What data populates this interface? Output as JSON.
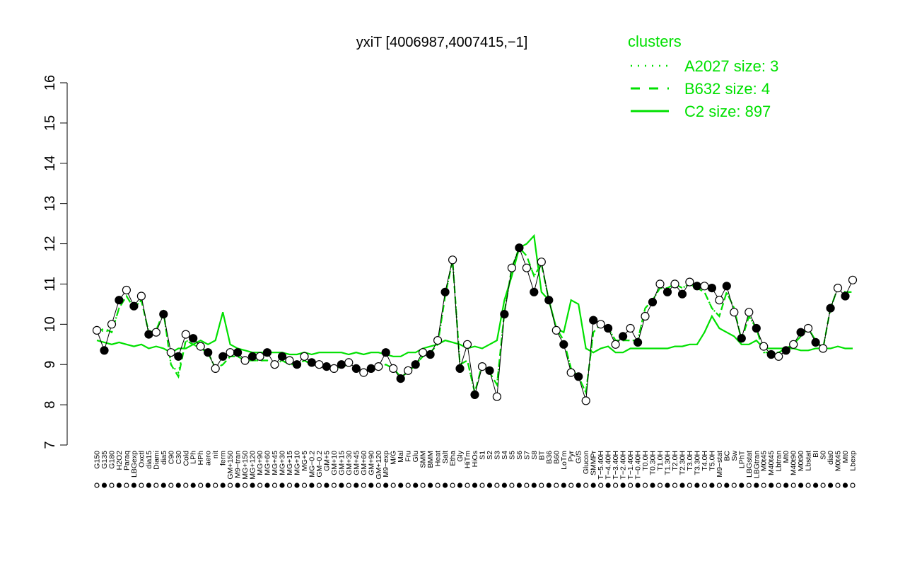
{
  "chart_data": {
    "type": "line",
    "title": "yxiT [4006987,4007415,−1]",
    "xlabel": "",
    "ylabel": "",
    "ylim": [
      7,
      16
    ],
    "yticks": [
      7,
      8,
      9,
      10,
      11,
      12,
      13,
      14,
      15,
      16
    ],
    "xticklabels": [
      "G150",
      "G135",
      "G180",
      "H2O2",
      "Paraq",
      "LBGexp",
      "Oxctl",
      "dia15",
      "Diami",
      "dia5",
      "C90",
      "C30",
      "Cold",
      "LPh",
      "HPh",
      "aero",
      "nit",
      "ferm",
      "GM+150",
      "M9−tran",
      "MG+150",
      "MG+120",
      "MG+90",
      "MG+60",
      "MG+45",
      "MG+30",
      "MG+15",
      "MG+10",
      "MG+5",
      "MG−0.2",
      "GM−0.2",
      "GM+5",
      "GM+10",
      "GM+15",
      "GM+30",
      "GM+45",
      "GM+60",
      "GM+90",
      "GM+120",
      "M9−exp",
      "M/G",
      "Mal",
      "Fru",
      "Glu",
      "SMM",
      "BMM",
      "Heat",
      "Salt",
      "Etha",
      "Gly",
      "HiTm",
      "HiOs",
      "S1",
      "S2",
      "S3",
      "S4",
      "S5",
      "S6",
      "S7",
      "S8",
      "BT",
      "B36",
      "B60",
      "LoTm",
      "Pyr",
      "G/S",
      "Glucon",
      "SMMPr",
      "T−5.40H",
      "T−4.40H",
      "T−3.40H",
      "T−2.40H",
      "T−1.40H",
      "T−0.40H",
      "T0.0H",
      "T0.30H",
      "T1.0H",
      "T1.30H",
      "T2.0H",
      "T2.30H",
      "T3.0H",
      "T3.30H",
      "T4.0H",
      "T5.0H",
      "M9−stat",
      "BC",
      "Sw",
      "LPhT",
      "LBGstat",
      "LBGtran",
      "M0t45",
      "M40t45",
      "Lbtran",
      "Mt0",
      "M40t90",
      "M0t90",
      "Lbstat",
      "BI",
      "S0",
      "dia0",
      "M0t45",
      "Mt0",
      "Lbexp"
    ],
    "legend": {
      "title": "clusters",
      "placement": "top-right",
      "entries": [
        "A2027 size: 3",
        "B632 size: 4",
        "C2 size: 897"
      ]
    },
    "series": [
      {
        "name": "C2 size: 897",
        "style": "solid",
        "values": [
          9.6,
          9.55,
          9.5,
          9.55,
          9.5,
          9.45,
          9.5,
          9.4,
          9.45,
          9.4,
          9.3,
          9.4,
          9.4,
          9.5,
          9.6,
          9.5,
          9.6,
          10.3,
          9.5,
          9.4,
          9.35,
          9.3,
          9.3,
          9.3,
          9.3,
          9.3,
          9.25,
          9.25,
          9.3,
          9.25,
          9.3,
          9.3,
          9.3,
          9.3,
          9.25,
          9.3,
          9.25,
          9.3,
          9.3,
          9.25,
          9.2,
          9.2,
          9.3,
          9.3,
          9.4,
          9.45,
          9.5,
          9.6,
          9.55,
          9.5,
          9.4,
          9.45,
          9.4,
          9.5,
          9.6,
          10.6,
          11.2,
          11.9,
          12.0,
          12.2,
          10.8,
          10.6,
          9.9,
          9.8,
          10.6,
          10.5,
          9.4,
          9.3,
          9.4,
          9.45,
          9.3,
          9.3,
          9.4,
          9.4,
          9.4,
          9.4,
          9.4,
          9.4,
          9.45,
          9.45,
          9.5,
          9.5,
          9.8,
          10.2,
          9.9,
          9.8,
          9.7,
          9.5,
          9.5,
          9.6,
          9.4,
          9.4,
          9.4,
          9.4,
          9.4,
          9.35,
          9.35,
          9.4,
          9.4,
          9.4,
          9.45,
          9.4,
          9.4
        ]
      },
      {
        "name": "B632 size: 4",
        "style": "dashed",
        "values": [
          9.8,
          9.9,
          9.8,
          10.4,
          10.7,
          10.4,
          10.6,
          9.8,
          9.85,
          10.3,
          9.0,
          8.7,
          9.6,
          9.5,
          9.4,
          9.3,
          8.9,
          9.0,
          9.2,
          9.2,
          9.1,
          9.1,
          9.1,
          9.1,
          9.0,
          9.1,
          9.0,
          9.0,
          9.1,
          9.0,
          9.0,
          8.9,
          8.9,
          8.95,
          9.0,
          8.9,
          8.8,
          8.9,
          8.9,
          9.0,
          8.9,
          8.7,
          8.8,
          9.0,
          9.2,
          9.3,
          9.5,
          10.7,
          11.6,
          9.0,
          9.1,
          8.3,
          9.0,
          8.8,
          8.5,
          10.3,
          11.4,
          11.9,
          11.7,
          11.2,
          11.5,
          10.6,
          9.9,
          9.6,
          8.9,
          8.7,
          8.3,
          9.8,
          10.0,
          9.9,
          9.6,
          9.6,
          9.6,
          9.6,
          10.4,
          10.6,
          10.9,
          10.9,
          11.0,
          10.9,
          11.0,
          10.9,
          10.8,
          10.4,
          10.2,
          10.8,
          10.4,
          9.6,
          10.2,
          9.9,
          9.3,
          9.3,
          9.3,
          9.4,
          9.5,
          9.7,
          9.9,
          9.6,
          9.4,
          10.4,
          10.9,
          10.8,
          10.8
        ]
      },
      {
        "name": "A2027 size: 3",
        "style": "dotted",
        "values": [
          9.8,
          9.85,
          9.8,
          10.4,
          10.7,
          10.4,
          10.6,
          9.8,
          9.85,
          10.3,
          9.0,
          8.8,
          9.6,
          9.5,
          9.4,
          9.3,
          8.9,
          9.0,
          9.2,
          9.2,
          9.1,
          9.1,
          9.1,
          9.1,
          9.0,
          9.1,
          9.0,
          9.0,
          9.1,
          9.0,
          9.0,
          8.9,
          8.9,
          8.95,
          9.0,
          8.9,
          8.8,
          8.9,
          8.9,
          9.0,
          8.9,
          8.7,
          8.8,
          9.0,
          9.2,
          9.3,
          9.5,
          10.7,
          11.6,
          9.0,
          9.1,
          8.3,
          9.0,
          8.8,
          8.5,
          10.3,
          11.4,
          11.9,
          11.7,
          11.2,
          11.5,
          10.6,
          9.9,
          9.6,
          8.9,
          8.7,
          8.3,
          9.8,
          10.0,
          9.9,
          9.6,
          9.6,
          9.6,
          9.6,
          10.4,
          10.6,
          10.9,
          10.9,
          11.0,
          10.9,
          11.0,
          10.9,
          10.8,
          10.4,
          10.2,
          10.8,
          10.4,
          9.6,
          10.2,
          9.9,
          9.3,
          9.3,
          9.3,
          9.4,
          9.5,
          9.7,
          9.9,
          9.6,
          9.4,
          10.4,
          10.9,
          10.8,
          10.8
        ]
      },
      {
        "name": "",
        "style": "points",
        "values": [
          9.85,
          9.35,
          10.0,
          10.6,
          10.85,
          10.45,
          10.7,
          9.75,
          9.8,
          10.25,
          9.3,
          9.2,
          9.75,
          9.65,
          9.45,
          9.3,
          8.9,
          9.2,
          9.3,
          9.3,
          9.1,
          9.2,
          9.2,
          9.3,
          9.0,
          9.2,
          9.1,
          9.0,
          9.2,
          9.05,
          9.0,
          8.95,
          8.9,
          9.0,
          9.05,
          8.9,
          8.8,
          8.9,
          8.95,
          9.3,
          8.9,
          8.65,
          8.85,
          9.0,
          9.3,
          9.25,
          9.6,
          10.8,
          11.6,
          8.9,
          9.5,
          8.25,
          8.95,
          8.85,
          8.2,
          10.25,
          11.4,
          11.9,
          11.4,
          10.8,
          11.55,
          10.6,
          9.85,
          9.5,
          8.8,
          8.7,
          8.1,
          10.1,
          10.0,
          9.9,
          9.5,
          9.7,
          9.9,
          9.55,
          10.2,
          10.55,
          11.0,
          10.8,
          11.0,
          10.75,
          11.05,
          10.95,
          10.95,
          10.9,
          10.6,
          10.95,
          10.3,
          9.65,
          10.3,
          9.9,
          9.45,
          9.25,
          9.2,
          9.35,
          9.5,
          9.8,
          9.9,
          9.55,
          9.4,
          10.4,
          10.9,
          10.7,
          11.1
        ]
      }
    ]
  }
}
